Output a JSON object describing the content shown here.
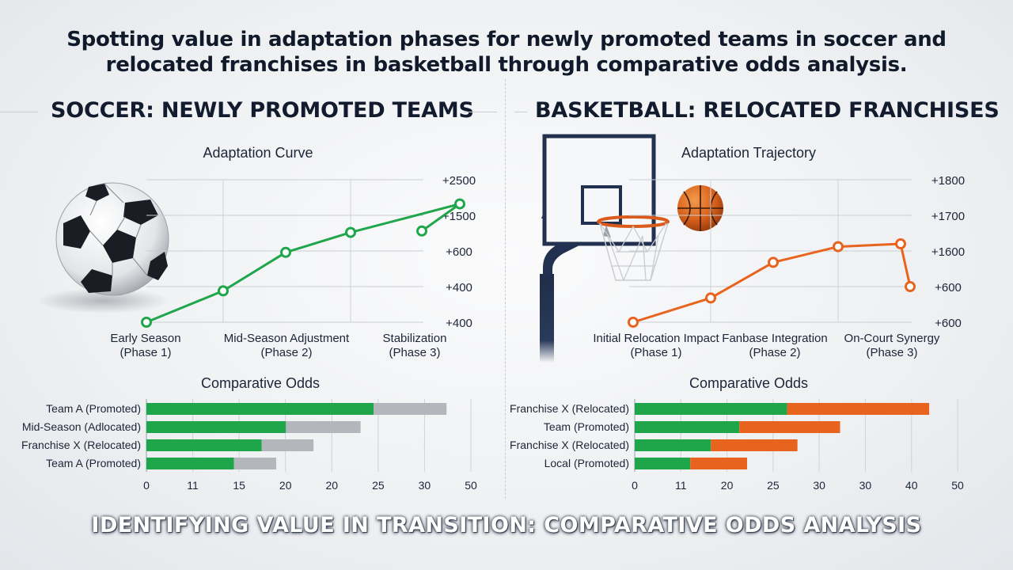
{
  "title": "Spotting value in adaptation phases for newly promoted teams in soccer and relocated franchises in basketball through comparative odds analysis.",
  "footer": "IDENTIFYING VALUE IN TRANSITION: COMPARATIVE ODDS ANALYSIS",
  "soccer": {
    "heading": "SOCCER: NEWLY PROMOTED TEAMS"
  },
  "basketball": {
    "heading": "BASKETBALL: RELOCATED FRANCHISES"
  },
  "colors": {
    "green": "#1fa64a",
    "orange": "#e8641e",
    "gray": "#b3b6ba"
  },
  "icons": [
    "soccer-ball-icon",
    "basketball-hoop-icon",
    "basketball-icon"
  ],
  "chart_data": [
    {
      "type": "line",
      "title": "Adaptation Curve",
      "x_labels": [
        "Early Season (Phase 1)",
        "Mid-Season Adjustment (Phase 2)",
        "Stabilization (Phase 3)"
      ],
      "tick_labels": [
        "+2500",
        "+1500",
        "+600",
        "+400",
        "+400"
      ],
      "y_positions": [
        0,
        0.22,
        0.49,
        0.63,
        0.83,
        0.64
      ],
      "color": "#1fa64a"
    },
    {
      "type": "bar",
      "title": "Comparative Odds",
      "categories": [
        "Team A (Promoted)",
        "Mid-Season (Adlocated)",
        "Franchise X (Relocated)",
        "Team A (Promoted)"
      ],
      "tick_labels": [
        "0",
        "11",
        "15",
        "20",
        "20",
        "25",
        "30",
        "50"
      ],
      "series": [
        {
          "values": [
            28,
            17.2,
            14.2,
            10.8
          ],
          "color": "#1fa64a"
        },
        {
          "values": [
            9,
            9.2,
            6.4,
            5.2
          ],
          "color": "#b3b6ba"
        }
      ],
      "xlim": [
        0,
        40
      ]
    },
    {
      "type": "line",
      "title": "Adaptation Trajectory",
      "x_labels": [
        "Initial Relocation Impact (Phase 1)",
        "Fanbase Integration (Phase 2)",
        "On-Court Synergy (Phase 3)"
      ],
      "tick_labels": [
        "+1800",
        "+1700",
        "+1600",
        "+600",
        "+600"
      ],
      "y_positions": [
        0,
        0.17,
        0.42,
        0.53,
        0.55,
        0.25
      ],
      "color": "#e8641e"
    },
    {
      "type": "bar",
      "title": "Comparative Odds",
      "categories": [
        "Franchise X (Relocated)",
        "Team (Promoted)",
        "Franchise X (Relocated)",
        "Local (Promoted)"
      ],
      "tick_labels": [
        "0",
        "11",
        "20",
        "25",
        "30",
        "30",
        "40",
        "50"
      ],
      "series": [
        {
          "values": [
            23.6,
            16.2,
            11.8,
            8.6
          ],
          "color": "#1fa64a"
        },
        {
          "values": [
            22,
            15.6,
            13.4,
            8.8
          ],
          "color": "#e8641e"
        }
      ],
      "xlim": [
        0,
        50
      ]
    }
  ]
}
